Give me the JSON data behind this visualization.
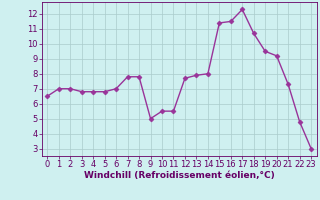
{
  "x": [
    0,
    1,
    2,
    3,
    4,
    5,
    6,
    7,
    8,
    9,
    10,
    11,
    12,
    13,
    14,
    15,
    16,
    17,
    18,
    19,
    20,
    21,
    22,
    23
  ],
  "y": [
    6.5,
    7.0,
    7.0,
    6.8,
    6.8,
    6.8,
    7.0,
    7.8,
    7.8,
    5.0,
    5.5,
    5.5,
    7.7,
    7.9,
    8.0,
    11.4,
    11.5,
    12.3,
    10.7,
    9.5,
    9.2,
    7.3,
    4.8,
    3.0
  ],
  "line_color": "#993399",
  "marker": "D",
  "markersize": 2.5,
  "linewidth": 1.0,
  "bg_color": "#cff0f0",
  "grid_color": "#aacccc",
  "xlabel": "Windchill (Refroidissement éolien,°C)",
  "xlim": [
    -0.5,
    23.5
  ],
  "ylim": [
    2.5,
    12.8
  ],
  "yticks": [
    3,
    4,
    5,
    6,
    7,
    8,
    9,
    10,
    11,
    12
  ],
  "xticks": [
    0,
    1,
    2,
    3,
    4,
    5,
    6,
    7,
    8,
    9,
    10,
    11,
    12,
    13,
    14,
    15,
    16,
    17,
    18,
    19,
    20,
    21,
    22,
    23
  ],
  "xlabel_fontsize": 6.5,
  "tick_fontsize": 6.0,
  "text_color": "#660066",
  "spine_color": "#660066",
  "bottom_bar_color": "#660066"
}
